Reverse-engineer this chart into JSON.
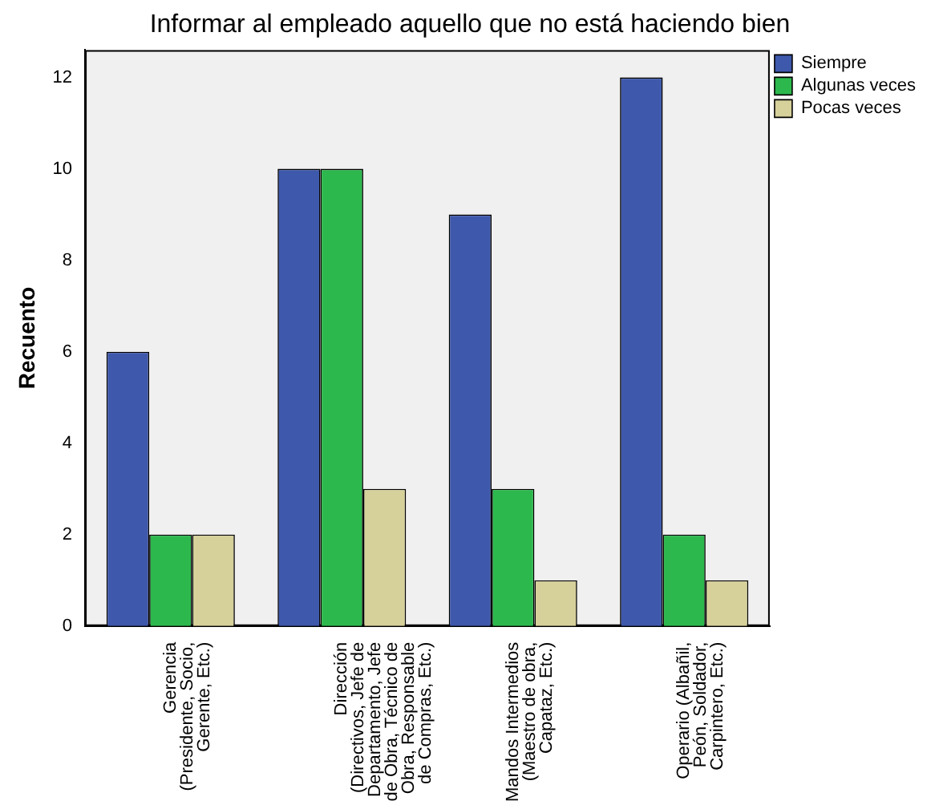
{
  "chart_data": {
    "type": "bar",
    "title": "Informar al empleado aquello que no está haciendo bien",
    "ylabel": "Recuento",
    "categories": [
      "Gerencia\n(Presidente, Socio,\nGerente, Etc.)",
      "Dirección\n(Directivos, Jefe de\nDepartamento, Jefe\nde Obra, Técnico de\nObra, Responsable\nde Compras, Etc.)",
      "Mandos Intermedios\n(Maestro de obra,\nCapataz, Etc.)",
      "Operario (Albañil,\nPeón, Soldador,\nCarpintero, Etc.)"
    ],
    "series": [
      {
        "name": "Siempre",
        "color": "#3e58ac",
        "values": [
          6,
          10,
          9,
          12
        ]
      },
      {
        "name": "Algunas veces",
        "color": "#2db84d",
        "values": [
          2,
          10,
          3,
          2
        ]
      },
      {
        "name": "Pocas veces",
        "color": "#d6d09a",
        "values": [
          2,
          3,
          1,
          1
        ]
      }
    ],
    "ylim": [
      0,
      12.6
    ],
    "yticks": [
      0,
      2,
      4,
      6,
      8,
      10,
      12
    ],
    "grid": false,
    "legend": "top right"
  }
}
